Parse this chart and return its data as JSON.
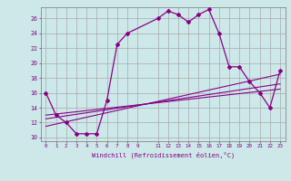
{
  "xlabel": "Windchill (Refroidissement éolien,°C)",
  "bg_color": "#cce8e8",
  "grid_color": "#aaaaaa",
  "line_color": "#880088",
  "xlim": [
    -0.5,
    23.5
  ],
  "ylim": [
    9.5,
    27.5
  ],
  "yticks": [
    10,
    12,
    14,
    16,
    18,
    20,
    22,
    24,
    26
  ],
  "xticks": [
    0,
    1,
    2,
    3,
    4,
    5,
    6,
    7,
    8,
    9,
    11,
    12,
    13,
    14,
    15,
    16,
    17,
    18,
    19,
    20,
    21,
    22,
    23
  ],
  "series1_x": [
    0,
    1,
    2,
    3,
    4,
    5,
    6,
    7,
    8,
    11,
    12,
    13,
    14,
    15,
    16,
    17,
    18,
    19,
    20,
    21,
    22,
    23
  ],
  "series1_y": [
    16,
    13,
    12,
    10.5,
    10.5,
    10.5,
    15,
    22.5,
    24,
    26,
    27,
    26.5,
    25.5,
    26.5,
    27.2,
    24,
    19.5,
    19.5,
    17.5,
    16,
    14,
    19
  ],
  "series2_x": [
    0,
    23
  ],
  "series2_y": [
    11.5,
    18.5
  ],
  "series3_x": [
    0,
    23
  ],
  "series3_y": [
    12.5,
    17.2
  ],
  "series4_x": [
    0,
    23
  ],
  "series4_y": [
    13.0,
    16.5
  ]
}
